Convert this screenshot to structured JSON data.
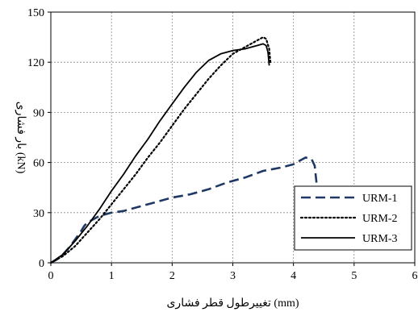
{
  "chart_data": {
    "type": "line",
    "title": "",
    "xlabel": "تغییرطول قطر فشاری (mm)",
    "ylabel": "بار فشاری (kN)",
    "xlim": [
      0,
      6
    ],
    "ylim": [
      0,
      150
    ],
    "xticks": [
      0,
      1,
      2,
      3,
      4,
      5,
      6
    ],
    "yticks": [
      0,
      30,
      60,
      90,
      120,
      150
    ],
    "grid": "dotted, both axes",
    "legend_position": "bottom-right",
    "series": [
      {
        "name": "URM-1",
        "style": "dashed",
        "color": "#1F3864",
        "points": [
          [
            0,
            0
          ],
          [
            0.1,
            2
          ],
          [
            0.2,
            5
          ],
          [
            0.3,
            9
          ],
          [
            0.4,
            14
          ],
          [
            0.5,
            19
          ],
          [
            0.55,
            22
          ],
          [
            0.6,
            24
          ],
          [
            0.7,
            26
          ],
          [
            0.8,
            28
          ],
          [
            0.9,
            29
          ],
          [
            1.0,
            30
          ],
          [
            1.2,
            31
          ],
          [
            1.5,
            34
          ],
          [
            1.8,
            37
          ],
          [
            2.0,
            39
          ],
          [
            2.3,
            41
          ],
          [
            2.6,
            44
          ],
          [
            2.9,
            48
          ],
          [
            3.2,
            51
          ],
          [
            3.5,
            55
          ],
          [
            3.8,
            57
          ],
          [
            4.0,
            59
          ],
          [
            4.1,
            61
          ],
          [
            4.2,
            63
          ],
          [
            4.3,
            62
          ],
          [
            4.35,
            58
          ],
          [
            4.38,
            48
          ]
        ]
      },
      {
        "name": "URM-2",
        "style": "dotted",
        "color": "#000000",
        "points": [
          [
            0,
            0
          ],
          [
            0.2,
            4
          ],
          [
            0.4,
            10
          ],
          [
            0.6,
            18
          ],
          [
            0.8,
            26
          ],
          [
            1.0,
            35
          ],
          [
            1.2,
            44
          ],
          [
            1.4,
            53
          ],
          [
            1.6,
            63
          ],
          [
            1.8,
            72
          ],
          [
            2.0,
            82
          ],
          [
            2.2,
            92
          ],
          [
            2.4,
            101
          ],
          [
            2.6,
            110
          ],
          [
            2.8,
            118
          ],
          [
            3.0,
            125
          ],
          [
            3.2,
            129
          ],
          [
            3.4,
            133
          ],
          [
            3.5,
            135
          ],
          [
            3.55,
            134
          ],
          [
            3.6,
            128
          ],
          [
            3.62,
            120
          ]
        ]
      },
      {
        "name": "URM-3",
        "style": "solid",
        "color": "#000000",
        "points": [
          [
            0,
            0
          ],
          [
            0.2,
            5
          ],
          [
            0.4,
            13
          ],
          [
            0.6,
            22
          ],
          [
            0.8,
            32
          ],
          [
            1.0,
            43
          ],
          [
            1.2,
            53
          ],
          [
            1.4,
            64
          ],
          [
            1.6,
            74
          ],
          [
            1.8,
            85
          ],
          [
            2.0,
            95
          ],
          [
            2.2,
            105
          ],
          [
            2.4,
            114
          ],
          [
            2.6,
            121
          ],
          [
            2.8,
            125
          ],
          [
            3.0,
            127
          ],
          [
            3.2,
            128
          ],
          [
            3.4,
            130
          ],
          [
            3.5,
            131
          ],
          [
            3.55,
            130
          ],
          [
            3.58,
            126
          ],
          [
            3.6,
            118
          ]
        ]
      }
    ]
  }
}
